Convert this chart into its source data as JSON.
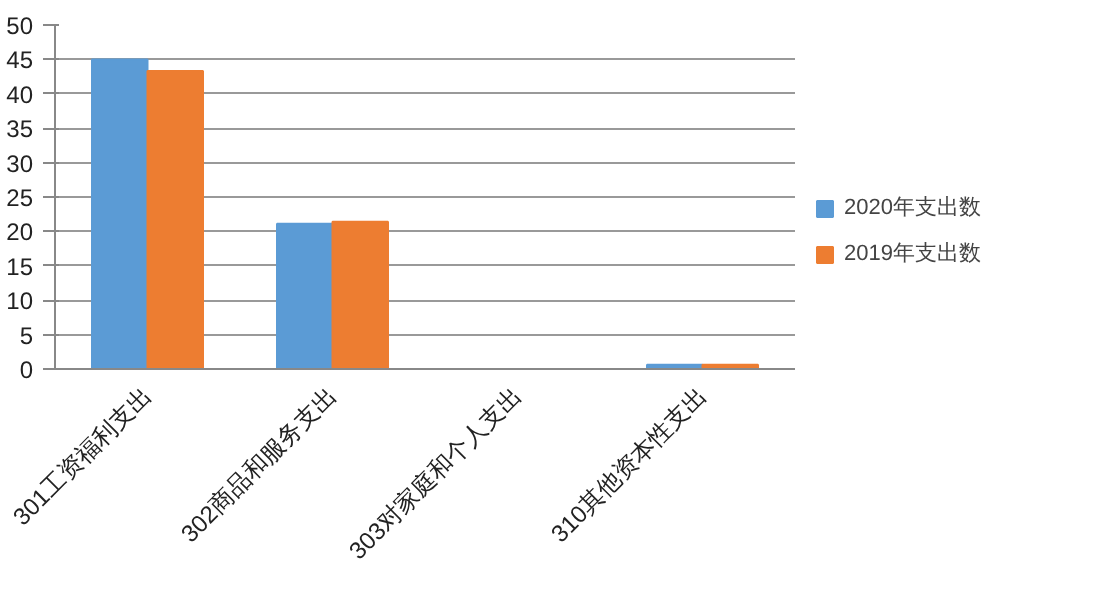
{
  "chart_data": {
    "type": "bar",
    "categories": [
      "301工资福利支出",
      "302商品和服务支出",
      "303对家庭和个人支出",
      "310其他资本性支出"
    ],
    "series": [
      {
        "name": "2020年支出数",
        "color": "#5b9bd5",
        "values": [
          45,
          21.1,
          0,
          0.6
        ]
      },
      {
        "name": "2019年支出数",
        "color": "#ed7d31",
        "values": [
          43.3,
          21.4,
          0,
          0.6
        ]
      }
    ],
    "ylim": [
      0,
      50
    ],
    "yticks": [
      0,
      5,
      10,
      15,
      20,
      25,
      30,
      35,
      40,
      45,
      50
    ],
    "grid": "y",
    "legend": "right"
  }
}
